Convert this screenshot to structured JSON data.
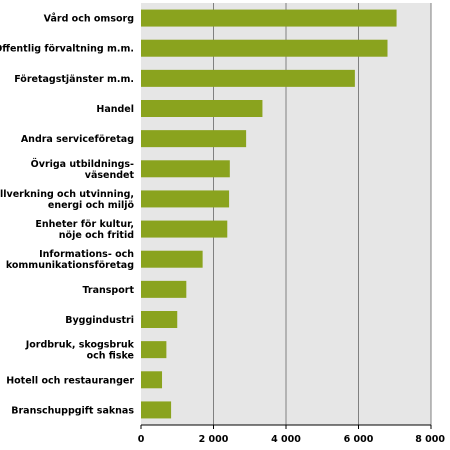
{
  "chart_data": {
    "type": "bar",
    "orientation": "horizontal",
    "categories": [
      [
        "Vård och omsorg"
      ],
      [
        "Offentlig förvaltning m.m."
      ],
      [
        "Företagstjänster m.m."
      ],
      [
        "Handel"
      ],
      [
        "Andra serviceföretag"
      ],
      [
        "Övriga utbildnings-",
        "väsendet"
      ],
      [
        "Tillverkning och utvinning,",
        "energi och miljö"
      ],
      [
        "Enheter för kultur,",
        "nöje och fritid"
      ],
      [
        "Informations- och",
        "kommunikationsföretag"
      ],
      [
        "Transport"
      ],
      [
        "Byggindustri"
      ],
      [
        "Jordbruk, skogsbruk",
        "och fiske"
      ],
      [
        "Hotell och restauranger"
      ],
      [
        "Branschuppgift saknas"
      ]
    ],
    "values": [
      7050,
      6800,
      5900,
      3350,
      2900,
      2450,
      2430,
      2380,
      1700,
      1250,
      1000,
      700,
      580,
      830
    ],
    "xlim": [
      0,
      8000
    ],
    "xticks": [
      0,
      2000,
      4000,
      6000,
      8000
    ],
    "xtick_labels": [
      "0",
      "2 000",
      "4 000",
      "6 000",
      "8 000"
    ],
    "title": "",
    "xlabel": "",
    "ylabel": "",
    "grid": true,
    "legend": "none"
  },
  "colors": {
    "bar": "#8aa31e",
    "plot_background": "#e6e6e6",
    "gridline": "#808080",
    "axis": "#000000"
  }
}
